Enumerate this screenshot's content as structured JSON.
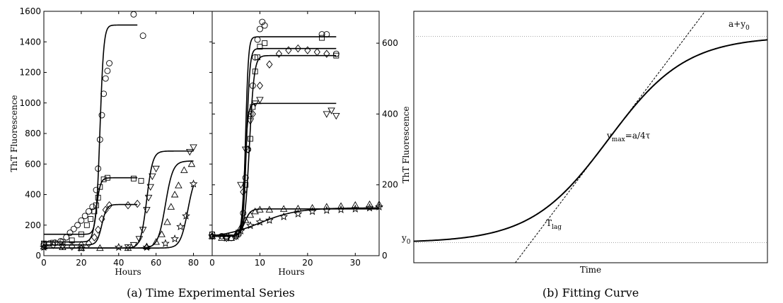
{
  "chart_data": [
    {
      "type": "scatter",
      "panel": "a-left",
      "xlabel": "Hours",
      "ylabel": "ThT Fluorescence",
      "xlim": [
        0,
        90
      ],
      "ylim": [
        0,
        1600
      ],
      "xticks": [
        0,
        20,
        40,
        60,
        80
      ],
      "yticks": [
        0,
        200,
        400,
        600,
        800,
        1000,
        1200,
        1400,
        1600
      ],
      "series": [
        {
          "marker": "circle",
          "points": [
            [
              0,
              75
            ],
            [
              3,
              80
            ],
            [
              6,
              85
            ],
            [
              9,
              95
            ],
            [
              12,
              120
            ],
            [
              14,
              150
            ],
            [
              16,
              175
            ],
            [
              18,
              200
            ],
            [
              20,
              230
            ],
            [
              22,
              260
            ],
            [
              24,
              290
            ],
            [
              26,
              320
            ],
            [
              28,
              430
            ],
            [
              29,
              570
            ],
            [
              30,
              760
            ],
            [
              31,
              920
            ],
            [
              32,
              1060
            ],
            [
              33,
              1160
            ],
            [
              34,
              1210
            ],
            [
              35,
              1260
            ],
            [
              48,
              1580
            ],
            [
              53,
              1440
            ]
          ],
          "fit": {
            "y0": 140,
            "a": 1370,
            "tmid": 30,
            "tau": 1.0,
            "xmax": 50
          }
        },
        {
          "marker": "square",
          "points": [
            [
              0,
              80
            ],
            [
              5,
              85
            ],
            [
              10,
              90
            ],
            [
              15,
              100
            ],
            [
              20,
              140
            ],
            [
              23,
              200
            ],
            [
              25,
              240
            ],
            [
              27,
              290
            ],
            [
              28,
              330
            ],
            [
              29,
              380
            ],
            [
              30,
              450
            ],
            [
              32,
              500
            ],
            [
              34,
              510
            ],
            [
              48,
              505
            ],
            [
              52,
              490
            ]
          ],
          "fit": {
            "y0": 90,
            "a": 420,
            "tmid": 28,
            "tau": 1.1,
            "xmax": 50
          }
        },
        {
          "marker": "diamond",
          "points": [
            [
              0,
              70
            ],
            [
              5,
              70
            ],
            [
              10,
              65
            ],
            [
              15,
              60
            ],
            [
              20,
              70
            ],
            [
              24,
              80
            ],
            [
              27,
              120
            ],
            [
              29,
              170
            ],
            [
              31,
              240
            ],
            [
              33,
              300
            ],
            [
              35,
              330
            ],
            [
              45,
              330
            ],
            [
              50,
              340
            ]
          ],
          "fit": {
            "y0": 70,
            "a": 265,
            "tmid": 31,
            "tau": 1.3,
            "xmax": 50
          }
        },
        {
          "marker": "triangle-down",
          "points": [
            [
              45,
              55
            ],
            [
              48,
              70
            ],
            [
              51,
              110
            ],
            [
              53,
              170
            ],
            [
              55,
              300
            ],
            [
              56,
              380
            ],
            [
              57,
              450
            ],
            [
              58,
              520
            ],
            [
              60,
              570
            ],
            [
              78,
              680
            ],
            [
              80,
              710
            ]
          ],
          "fit": {
            "y0": 50,
            "a": 635,
            "tmid": 55,
            "tau": 1.6,
            "xmax": 80
          }
        },
        {
          "marker": "triangle-up",
          "points": [
            [
              0,
              60
            ],
            [
              10,
              55
            ],
            [
              20,
              50
            ],
            [
              30,
              50
            ],
            [
              45,
              50
            ],
            [
              55,
              60
            ],
            [
              60,
              90
            ],
            [
              63,
              140
            ],
            [
              66,
              220
            ],
            [
              68,
              320
            ],
            [
              70,
              400
            ],
            [
              72,
              460
            ],
            [
              75,
              560
            ],
            [
              79,
              600
            ]
          ],
          "fit": {
            "y0": 50,
            "a": 570,
            "tmid": 65,
            "tau": 2.0,
            "xmax": 80
          }
        },
        {
          "marker": "star",
          "points": [
            [
              0,
              55
            ],
            [
              20,
              50
            ],
            [
              40,
              55
            ],
            [
              55,
              55
            ],
            [
              65,
              80
            ],
            [
              70,
              110
            ],
            [
              73,
              190
            ],
            [
              76,
              260
            ],
            [
              80,
              470
            ]
          ],
          "fit": {
            "y0": 50,
            "a": 500,
            "tmid": 77,
            "tau": 2.0,
            "xmax": 80
          }
        }
      ]
    },
    {
      "type": "scatter",
      "panel": "a-right",
      "xlabel": "Hours",
      "xlim": [
        0,
        35
      ],
      "ylim": [
        0,
        690
      ],
      "xticks": [
        0,
        10,
        20,
        30
      ],
      "yticks": [
        0,
        200,
        400,
        600
      ],
      "series": [
        {
          "marker": "circle",
          "points": [
            [
              0,
              60
            ],
            [
              2,
              55
            ],
            [
              4,
              50
            ],
            [
              5.5,
              60
            ],
            [
              6.5,
              120
            ],
            [
              7,
              220
            ],
            [
              7.5,
              300
            ],
            [
              8,
              400
            ],
            [
              8.5,
              480
            ],
            [
              9,
              560
            ],
            [
              9.5,
              610
            ],
            [
              10,
              640
            ],
            [
              10.5,
              660
            ],
            [
              11,
              650
            ],
            [
              23,
              625
            ],
            [
              24,
              625
            ],
            [
              26,
              570
            ]
          ],
          "fit": {
            "y0": 58,
            "a": 560,
            "tmid": 7,
            "tau": 0.3,
            "xmax": 26
          }
        },
        {
          "marker": "square",
          "points": [
            [
              0,
              60
            ],
            [
              3,
              55
            ],
            [
              5.5,
              65
            ],
            [
              7,
              200
            ],
            [
              8,
              330
            ],
            [
              8.5,
              420
            ],
            [
              9,
              520
            ],
            [
              9.5,
              560
            ],
            [
              10,
              590
            ],
            [
              11,
              600
            ],
            [
              23,
              615
            ],
            [
              26,
              565
            ]
          ],
          "fit": {
            "y0": 58,
            "a": 527,
            "tmid": 7.2,
            "tau": 0.35,
            "xmax": 26
          }
        },
        {
          "marker": "diamond",
          "points": [
            [
              0,
              55
            ],
            [
              3,
              50
            ],
            [
              5,
              55
            ],
            [
              6.5,
              180
            ],
            [
              7.5,
              300
            ],
            [
              8.5,
              400
            ],
            [
              10,
              480
            ],
            [
              12,
              540
            ],
            [
              14,
              570
            ],
            [
              16,
              580
            ],
            [
              18,
              585
            ],
            [
              20,
              580
            ],
            [
              22,
              575
            ],
            [
              24,
              570
            ]
          ],
          "fit": {
            "y0": 55,
            "a": 510,
            "tmid": 7.8,
            "tau": 0.5,
            "xmax": 26
          }
        },
        {
          "marker": "triangle-down",
          "points": [
            [
              6,
              200
            ],
            [
              7,
              300
            ],
            [
              8,
              380
            ],
            [
              9,
              430
            ],
            [
              10,
              440
            ],
            [
              24,
              400
            ],
            [
              25,
              410
            ],
            [
              26,
              395
            ]
          ],
          "fit": {
            "y0": 55,
            "a": 375,
            "tmid": 6.8,
            "tau": 0.35,
            "xmax": 26
          }
        },
        {
          "marker": "triangle-up",
          "points": [
            [
              0,
              55
            ],
            [
              2,
              50
            ],
            [
              4,
              50
            ],
            [
              5,
              60
            ],
            [
              6,
              80
            ],
            [
              7,
              100
            ],
            [
              8,
              115
            ],
            [
              9,
              125
            ],
            [
              10,
              130
            ],
            [
              12,
              130
            ],
            [
              15,
              132
            ],
            [
              18,
              133
            ],
            [
              21,
              135
            ],
            [
              24,
              138
            ],
            [
              27,
              140
            ],
            [
              30,
              143
            ],
            [
              33,
              145
            ],
            [
              35,
              145
            ]
          ],
          "fit": {
            "y0": 55,
            "a": 77,
            "tmid": 6.8,
            "tau": 0.6,
            "xmax": 35
          }
        },
        {
          "marker": "star",
          "points": [
            [
              0,
              55
            ],
            [
              3,
              50
            ],
            [
              5,
              55
            ],
            [
              6,
              70
            ],
            [
              8,
              85
            ],
            [
              10,
              95
            ],
            [
              12,
              100
            ],
            [
              15,
              110
            ],
            [
              18,
              118
            ],
            [
              21,
              125
            ],
            [
              24,
              128
            ],
            [
              27,
              130
            ],
            [
              30,
              132
            ],
            [
              33,
              135
            ],
            [
              35,
              138
            ]
          ],
          "fit": {
            "y0": 50,
            "a": 85,
            "tmid": 10,
            "tau": 4.0,
            "xmax": 35
          }
        }
      ]
    },
    {
      "type": "line",
      "panel": "b",
      "xlabel": "Time",
      "ylabel": "ThT Fluorescence",
      "model": {
        "y0": 0.08,
        "a": 0.82,
        "tmid": 0.55,
        "tau": 0.11
      },
      "annotations": {
        "y0_label": "y",
        "y0_sub": "0",
        "plateau_label": "a+y",
        "plateau_sub": "0",
        "vmax_label_main": "v",
        "vmax_label_sub": "max",
        "vmax_label_rest": "=a/4τ",
        "tlag_label": "T",
        "tlag_sub": "lag"
      }
    }
  ],
  "captions": {
    "a": "(a) Time Experimental Series",
    "b": "(b) Fitting Curve"
  }
}
